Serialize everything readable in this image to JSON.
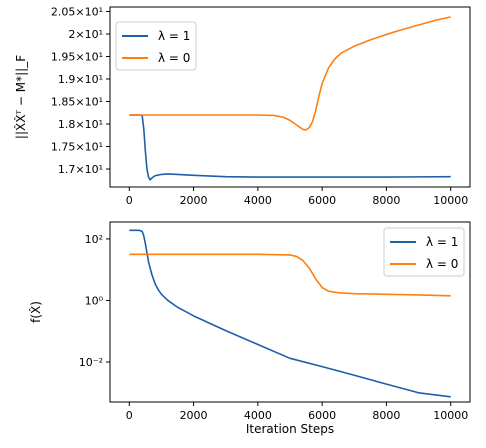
{
  "chart_data": [
    {
      "type": "line",
      "title": "",
      "xlabel": "",
      "ylabel": "||X̂X̂ᵀ − M*||_F",
      "xlim": [
        -600,
        10600
      ],
      "ylim": [
        16.6,
        20.6
      ],
      "yscale": "linear",
      "x_ticks": [
        0,
        2000,
        4000,
        6000,
        8000,
        10000
      ],
      "x_tick_labels": [
        "0",
        "2000",
        "4000",
        "6000",
        "8000",
        "10000"
      ],
      "y_ticks": [
        17.0,
        17.5,
        18.0,
        18.5,
        19.0,
        19.5,
        20.0,
        20.5
      ],
      "y_tick_labels": [
        "1.7×10¹",
        "1.75×10¹",
        "1.8×10¹",
        "1.85×10¹",
        "1.9×10¹",
        "1.95×10¹",
        "2×10¹",
        "2.05×10¹"
      ],
      "grid": false,
      "legend": "top-left",
      "series": [
        {
          "name": "λ = 1",
          "color": "#1f5fa8",
          "x": [
            0,
            300,
            400,
            450,
            500,
            550,
            600,
            650,
            700,
            800,
            1000,
            1200,
            1500,
            2000,
            3000,
            4000,
            5000,
            6000,
            7000,
            8000,
            9000,
            10000
          ],
          "y": [
            18.2,
            18.2,
            18.19,
            17.9,
            17.4,
            17.0,
            16.82,
            16.76,
            16.8,
            16.85,
            16.88,
            16.89,
            16.88,
            16.86,
            16.83,
            16.82,
            16.82,
            16.82,
            16.82,
            16.82,
            16.825,
            16.83
          ]
        },
        {
          "name": "λ = 0",
          "color": "#ff7f0e",
          "x": [
            0,
            1000,
            2000,
            3000,
            4000,
            4500,
            4800,
            5000,
            5200,
            5400,
            5500,
            5600,
            5700,
            5800,
            5900,
            6000,
            6200,
            6400,
            6600,
            7000,
            7500,
            8000,
            8500,
            9000,
            9500,
            10000
          ],
          "y": [
            18.2,
            18.2,
            18.2,
            18.2,
            18.2,
            18.19,
            18.15,
            18.08,
            17.98,
            17.88,
            17.87,
            17.92,
            18.05,
            18.3,
            18.62,
            18.9,
            19.25,
            19.45,
            19.58,
            19.73,
            19.87,
            19.99,
            20.1,
            20.2,
            20.3,
            20.38
          ]
        }
      ]
    },
    {
      "type": "line",
      "title": "",
      "xlabel": "Iteration Steps",
      "ylabel": "f(X̂)",
      "xlim": [
        -600,
        10600
      ],
      "yscale": "log",
      "ylim_log10": [
        -3.3,
        2.55
      ],
      "x_ticks": [
        0,
        2000,
        4000,
        6000,
        8000,
        10000
      ],
      "x_tick_labels": [
        "0",
        "2000",
        "4000",
        "6000",
        "8000",
        "10000"
      ],
      "y_ticks_log10": [
        2,
        0,
        -2
      ],
      "y_tick_labels": [
        "10²",
        "10⁰",
        "10⁻²"
      ],
      "grid": false,
      "legend": "top-right",
      "series": [
        {
          "name": "λ = 1",
          "color": "#1f5fa8",
          "x": [
            0,
            300,
            400,
            450,
            500,
            550,
            600,
            700,
            800,
            900,
            1000,
            1200,
            1500,
            2000,
            3000,
            4000,
            5000,
            6000,
            7000,
            8000,
            9000,
            10000
          ],
          "y_log10": [
            2.28,
            2.28,
            2.25,
            2.1,
            1.85,
            1.55,
            1.25,
            0.85,
            0.55,
            0.35,
            0.2,
            0.0,
            -0.22,
            -0.5,
            -0.98,
            -1.43,
            -1.88,
            -2.15,
            -2.43,
            -2.72,
            -3.0,
            -3.13
          ]
        },
        {
          "name": "λ = 0",
          "color": "#ff7f0e",
          "x": [
            0,
            1000,
            2000,
            3000,
            4000,
            5000,
            5200,
            5400,
            5600,
            5800,
            6000,
            6200,
            6500,
            7000,
            8000,
            9000,
            10000
          ],
          "y_log10": [
            1.5,
            1.5,
            1.5,
            1.5,
            1.5,
            1.48,
            1.43,
            1.3,
            1.05,
            0.7,
            0.42,
            0.3,
            0.25,
            0.22,
            0.2,
            0.18,
            0.15
          ]
        }
      ]
    }
  ]
}
